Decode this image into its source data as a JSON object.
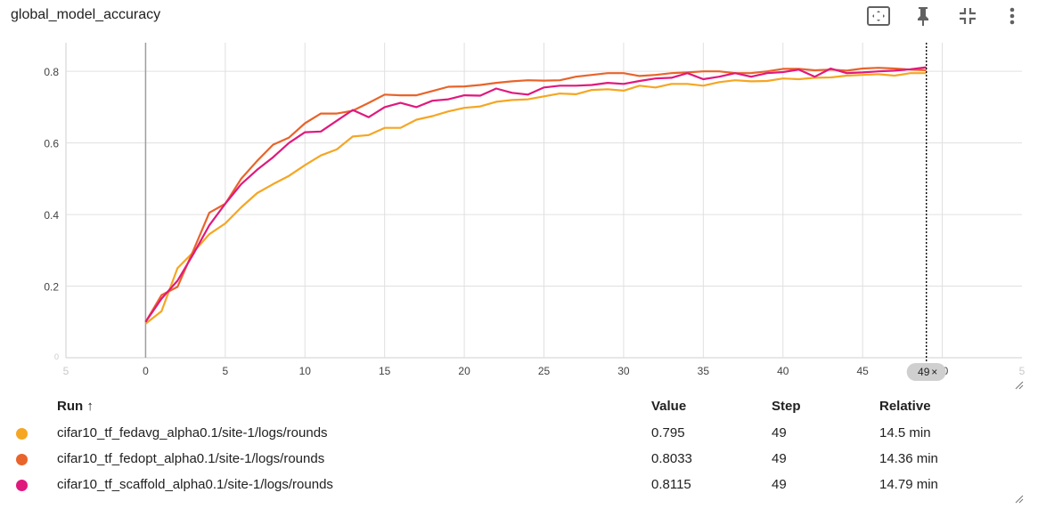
{
  "header": {
    "title": "global_model_accuracy",
    "tools": [
      {
        "name": "fit-domain-icon"
      },
      {
        "name": "pin-icon"
      },
      {
        "name": "collapse-icon"
      },
      {
        "name": "more-vert-icon"
      }
    ]
  },
  "chart_data": {
    "type": "line",
    "xlim": [
      -5,
      55
    ],
    "ylim": [
      0,
      0.88
    ],
    "x_ticks": [
      "5",
      "0",
      "5",
      "10",
      "15",
      "20",
      "25",
      "30",
      "35",
      "40",
      "45",
      "50",
      "5"
    ],
    "y_ticks": [
      "0",
      "0.2",
      "0.4",
      "0.6",
      "0.8"
    ],
    "grid": true,
    "hover_step": 49,
    "hover_label": "49",
    "hover_close": "×",
    "x": [
      0,
      1,
      2,
      3,
      4,
      5,
      6,
      7,
      8,
      9,
      10,
      11,
      12,
      13,
      14,
      15,
      16,
      17,
      18,
      19,
      20,
      21,
      22,
      23,
      24,
      25,
      26,
      27,
      28,
      29,
      30,
      31,
      32,
      33,
      34,
      35,
      36,
      37,
      38,
      39,
      40,
      41,
      42,
      43,
      44,
      45,
      46,
      47,
      48,
      49
    ],
    "series": [
      {
        "name": "cifar10_tf_fedavg_alpha0.1/site-1/logs/rounds",
        "color": "#f5a623",
        "values": [
          0.095,
          0.13,
          0.25,
          0.295,
          0.345,
          0.375,
          0.42,
          0.46,
          0.485,
          0.508,
          0.538,
          0.565,
          0.582,
          0.618,
          0.622,
          0.642,
          0.642,
          0.665,
          0.675,
          0.688,
          0.698,
          0.702,
          0.715,
          0.72,
          0.722,
          0.73,
          0.738,
          0.736,
          0.748,
          0.75,
          0.746,
          0.76,
          0.755,
          0.765,
          0.765,
          0.76,
          0.77,
          0.775,
          0.772,
          0.773,
          0.78,
          0.778,
          0.782,
          0.783,
          0.788,
          0.79,
          0.792,
          0.788,
          0.795,
          0.795
        ]
      },
      {
        "name": "cifar10_tf_fedopt_alpha0.1/site-1/logs/rounds",
        "color": "#e8642a",
        "values": [
          0.1,
          0.175,
          0.198,
          0.3,
          0.405,
          0.43,
          0.5,
          0.55,
          0.595,
          0.615,
          0.655,
          0.682,
          0.682,
          0.69,
          0.712,
          0.735,
          0.733,
          0.733,
          0.745,
          0.757,
          0.758,
          0.762,
          0.768,
          0.772,
          0.775,
          0.774,
          0.775,
          0.785,
          0.79,
          0.795,
          0.795,
          0.787,
          0.79,
          0.795,
          0.797,
          0.8,
          0.8,
          0.795,
          0.795,
          0.8,
          0.807,
          0.807,
          0.803,
          0.805,
          0.802,
          0.808,
          0.81,
          0.808,
          0.805,
          0.8033
        ]
      },
      {
        "name": "cifar10_tf_scaffold_alpha0.1/site-1/logs/rounds",
        "color": "#e0197d",
        "values": [
          0.1,
          0.165,
          0.215,
          0.29,
          0.37,
          0.43,
          0.485,
          0.525,
          0.56,
          0.6,
          0.63,
          0.632,
          0.662,
          0.692,
          0.672,
          0.7,
          0.712,
          0.7,
          0.718,
          0.722,
          0.733,
          0.732,
          0.752,
          0.74,
          0.735,
          0.755,
          0.76,
          0.76,
          0.762,
          0.768,
          0.765,
          0.773,
          0.78,
          0.782,
          0.795,
          0.778,
          0.785,
          0.795,
          0.785,
          0.795,
          0.798,
          0.805,
          0.785,
          0.808,
          0.795,
          0.797,
          0.8,
          0.802,
          0.806,
          0.8115
        ]
      }
    ]
  },
  "table": {
    "columns": {
      "run": "Run",
      "sort_icon": "↑",
      "value": "Value",
      "step": "Step",
      "relative": "Relative"
    },
    "rows": [
      {
        "color": "#f5a623",
        "run": "cifar10_tf_fedavg_alpha0.1/site-1/logs/rounds",
        "value": "0.795",
        "step": "49",
        "relative": "14.5 min"
      },
      {
        "color": "#e8642a",
        "run": "cifar10_tf_fedopt_alpha0.1/site-1/logs/rounds",
        "value": "0.8033",
        "step": "49",
        "relative": "14.36 min"
      },
      {
        "color": "#e0197d",
        "run": "cifar10_tf_scaffold_alpha0.1/site-1/logs/rounds",
        "value": "0.8115",
        "step": "49",
        "relative": "14.79 min"
      }
    ]
  }
}
